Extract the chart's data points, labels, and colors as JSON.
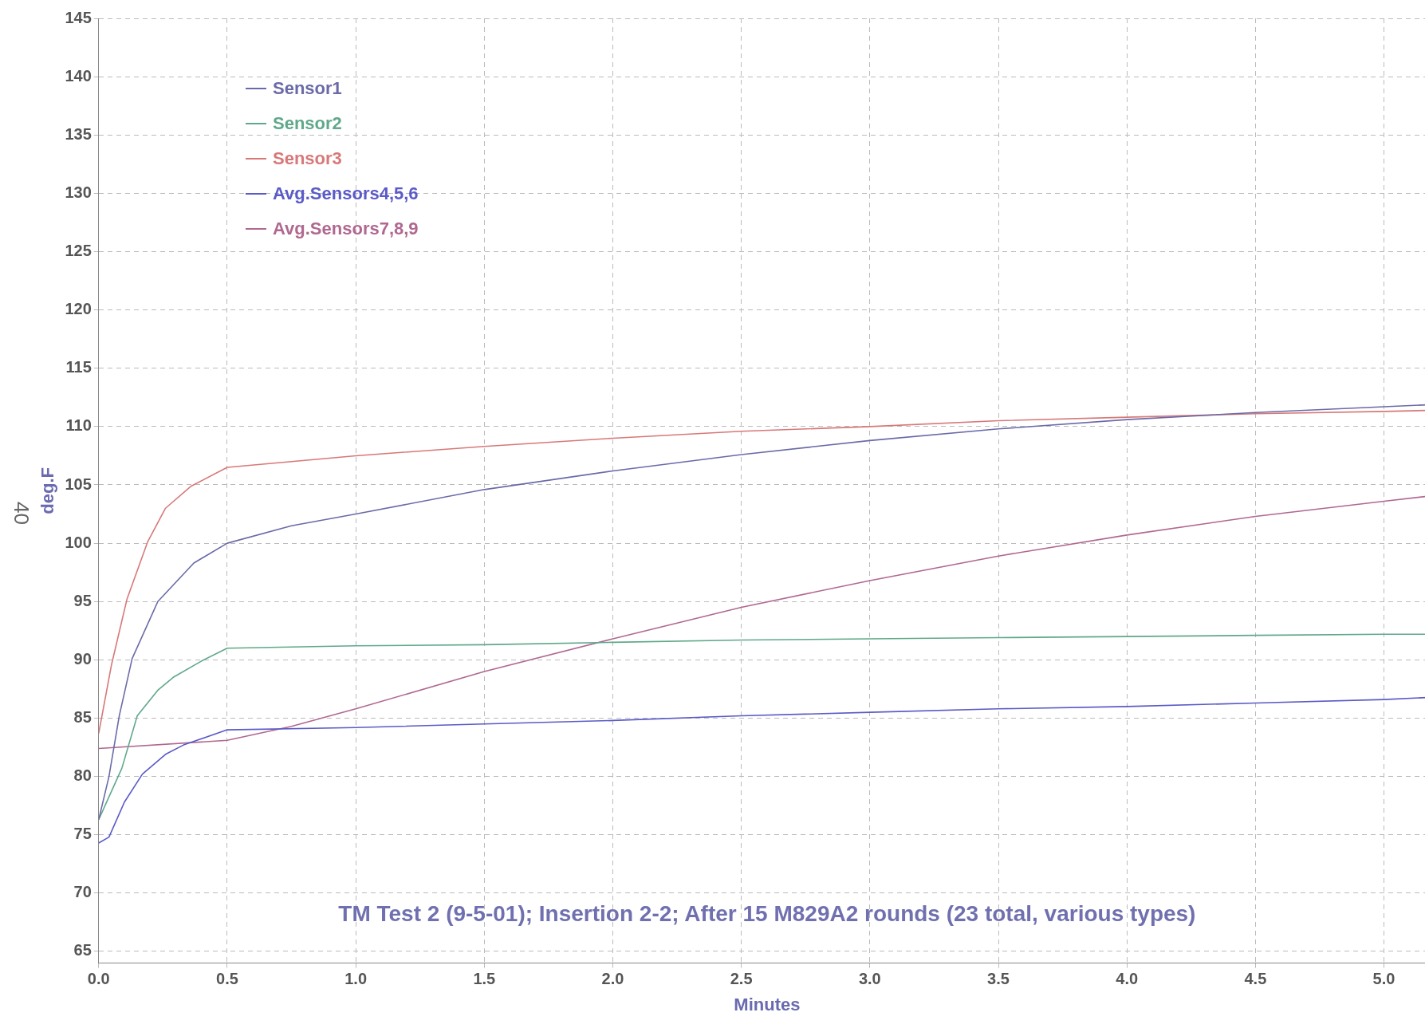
{
  "chart_data": {
    "type": "line",
    "xlabel": "Minutes",
    "ylabel": "deg.F",
    "annotations": [
      "TM Test 2 (9-5-01); Insertion 2-2; After 15 M829A2 rounds (23 total, various types)",
      "40"
    ],
    "xlim": [
      0,
      5.2
    ],
    "xticks": [
      {
        "value": 0,
        "label": "0.0"
      },
      {
        "value": 0.5,
        "label": "0.5"
      },
      {
        "value": 1,
        "label": "1.0"
      },
      {
        "value": 1.5,
        "label": "1.5"
      },
      {
        "value": 2,
        "label": "2.0"
      },
      {
        "value": 2.5,
        "label": "2.5"
      },
      {
        "value": 3,
        "label": "3.0"
      },
      {
        "value": 3.5,
        "label": "3.5"
      },
      {
        "value": 4,
        "label": "4.0"
      },
      {
        "value": 4.5,
        "label": "4.5"
      },
      {
        "value": 5,
        "label": "5.0"
      }
    ],
    "ylim": [
      64,
      145
    ],
    "yticks": [
      65,
      70,
      75,
      80,
      85,
      90,
      95,
      100,
      105,
      110,
      115,
      120,
      125,
      130,
      135,
      140,
      145
    ],
    "grid": true,
    "legend": "top left",
    "marker": "none",
    "line_style": "solid",
    "series": [
      {
        "name": "Sensor1",
        "color": "#6a6aa8",
        "x": [
          0,
          0.04,
          0.08,
          0.13,
          0.23,
          0.37,
          0.5,
          0.75,
          1,
          1.5,
          2,
          2.5,
          3,
          3.5,
          4,
          4.5,
          5,
          5.2
        ],
        "values": [
          76.3,
          80,
          85.2,
          90.1,
          95,
          98.3,
          100,
          101.5,
          102.5,
          104.6,
          106.2,
          107.6,
          108.8,
          109.8,
          110.6,
          111.2,
          111.7,
          111.9
        ]
      },
      {
        "name": "Sensor2",
        "color": "#5fa88a",
        "x": [
          0,
          0.09,
          0.15,
          0.23,
          0.29,
          0.4,
          0.5,
          1,
          1.5,
          2,
          2.5,
          3,
          3.5,
          4,
          4.5,
          5,
          5.2
        ],
        "values": [
          76.3,
          80.7,
          85.2,
          87.4,
          88.5,
          89.9,
          91,
          91.2,
          91.3,
          91.5,
          91.7,
          91.8,
          91.9,
          92,
          92.1,
          92.2,
          92.2
        ]
      },
      {
        "name": "Sensor3",
        "color": "#d87878",
        "x": [
          0,
          0.05,
          0.11,
          0.19,
          0.26,
          0.36,
          0.5,
          0.75,
          1,
          1.5,
          2,
          2.5,
          3,
          3.5,
          4,
          4.5,
          5,
          5.2
        ],
        "values": [
          83.7,
          89.6,
          95.2,
          100.1,
          103,
          104.9,
          106.5,
          107,
          107.5,
          108.3,
          109,
          109.6,
          110,
          110.5,
          110.8,
          111.1,
          111.3,
          111.4
        ]
      },
      {
        "name": "Avg.Sensors4,5,6",
        "color": "#5a5ac8",
        "x": [
          0,
          0.04,
          0.1,
          0.17,
          0.26,
          0.33,
          0.5,
          1,
          1.5,
          2,
          2.5,
          3,
          3.5,
          4,
          4.5,
          5,
          5.2
        ],
        "values": [
          74.3,
          74.8,
          77.8,
          80.2,
          81.9,
          82.7,
          84,
          84.2,
          84.5,
          84.8,
          85.2,
          85.5,
          85.8,
          86,
          86.3,
          86.6,
          86.8
        ]
      },
      {
        "name": "Avg.Sensors7,8,9",
        "color": "#b06890",
        "x": [
          0,
          0.5,
          0.75,
          1,
          1.5,
          2,
          2.5,
          3,
          3.5,
          4,
          4.5,
          5,
          5.2
        ],
        "values": [
          82.4,
          83.1,
          84.3,
          85.8,
          89,
          91.8,
          94.5,
          96.8,
          98.9,
          100.7,
          102.3,
          103.6,
          104.1
        ]
      }
    ]
  }
}
